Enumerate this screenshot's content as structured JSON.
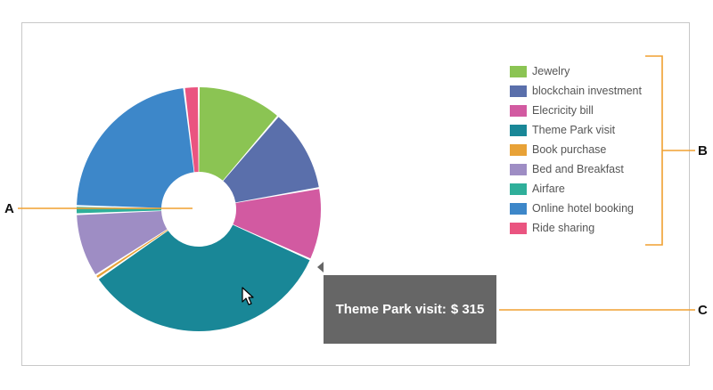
{
  "chart_data": {
    "type": "pie",
    "donut": true,
    "categories": [
      "Jewelry",
      "blockchain investment",
      "Elecricity bill",
      "Theme Park visit",
      "Book purchase",
      "Bed and Breakfast",
      "Airfare",
      "Online hotel booking",
      "Ride sharing"
    ],
    "values": [
      105,
      103,
      89,
      315,
      5,
      79,
      10,
      212,
      18
    ],
    "colors": [
      "#8bc453",
      "#5a6fab",
      "#d25aa1",
      "#198797",
      "#e8a237",
      "#9e8dc4",
      "#2faf9a",
      "#3d87c9",
      "#ea5480"
    ],
    "legend_position": "right"
  },
  "tooltip": {
    "label": "Theme Park visit:",
    "value": "$ 315"
  },
  "callouts": {
    "a": "A",
    "b": "B",
    "c": "C"
  },
  "colors": {
    "callout_line": "#f0a030",
    "tooltip_bg": "#666666"
  },
  "cursor_icon": "arrow-cursor-icon"
}
